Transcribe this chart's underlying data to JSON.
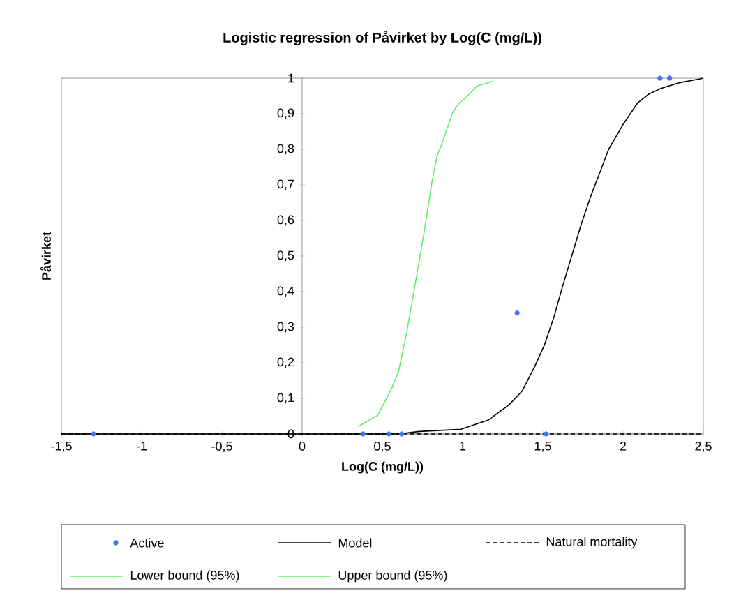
{
  "chart_data": {
    "type": "line",
    "title": "Logistic regression of Påvirket by Log(C (mg/L))",
    "xlabel": "Log(C (mg/L))",
    "ylabel": "Påvirket",
    "xlim": [
      -1.5,
      2.5
    ],
    "ylim": [
      0,
      1
    ],
    "xticks": [
      {
        "value": -1.5,
        "label": "-1,5"
      },
      -1,
      {
        "value": -0.5,
        "label": "-0,5"
      },
      0,
      {
        "value": 0.5,
        "label": "0,5"
      },
      1,
      {
        "value": 1.5,
        "label": "1,5"
      },
      2,
      {
        "value": 2.5,
        "label": "2,5"
      }
    ],
    "yticks": [
      0,
      {
        "value": 0.1,
        "label": "0,1"
      },
      {
        "value": 0.2,
        "label": "0,2"
      },
      {
        "value": 0.3,
        "label": "0,3"
      },
      {
        "value": 0.4,
        "label": "0,4"
      },
      {
        "value": 0.5,
        "label": "0,5"
      },
      {
        "value": 0.6,
        "label": "0,6"
      },
      {
        "value": 0.7,
        "label": "0,7"
      },
      {
        "value": 0.8,
        "label": "0,8"
      },
      {
        "value": 0.9,
        "label": "0,9"
      },
      1
    ],
    "grid": false,
    "legend": "bottom",
    "series": [
      {
        "name": "Active",
        "type": "scatter",
        "marker": "circle",
        "color": "#3f72f5",
        "x": [
          -1.3,
          0.38,
          0.54,
          0.62,
          1.52,
          1.34,
          2.23,
          2.29
        ],
        "values": [
          0,
          0,
          0,
          0,
          0,
          0.34,
          1,
          1
        ]
      },
      {
        "name": "Model",
        "line_style": "solid",
        "color": "#000000",
        "x": [
          -1.5,
          0.6,
          0.73,
          0.99,
          1.16,
          1.29,
          1.37,
          1.45,
          1.51,
          1.57,
          1.62,
          1.68,
          1.74,
          1.8,
          1.86,
          1.91,
          2.0,
          2.09,
          2.16,
          2.23,
          2.35,
          2.47,
          2.5
        ],
        "values": [
          0,
          0,
          0.007,
          0.013,
          0.039,
          0.082,
          0.12,
          0.19,
          0.25,
          0.33,
          0.41,
          0.5,
          0.59,
          0.67,
          0.74,
          0.8,
          0.87,
          0.93,
          0.955,
          0.97,
          0.987,
          0.997,
          1
        ]
      },
      {
        "name": "Natural mortality",
        "line_style": "dashed",
        "color": "#000000",
        "x": [
          -1.5,
          2.5
        ],
        "values": [
          0,
          0
        ]
      },
      {
        "name": "Lower bound (95%)",
        "line_style": "solid",
        "color": "#66ee66",
        "x": [
          0.35,
          0.47,
          0.52,
          0.56,
          0.6,
          0.65,
          0.71,
          0.76,
          0.81,
          0.84,
          0.87,
          0.94,
          0.98,
          1.02,
          1.09,
          1.19
        ],
        "values": [
          0.021,
          0.052,
          0.095,
          0.13,
          0.174,
          0.28,
          0.435,
          0.566,
          0.71,
          0.78,
          0.814,
          0.906,
          0.93,
          0.945,
          0.978,
          0.991
        ]
      },
      {
        "name": "Upper bound (95%)",
        "line_style": "solid",
        "color": "#66ee66"
      }
    ]
  }
}
